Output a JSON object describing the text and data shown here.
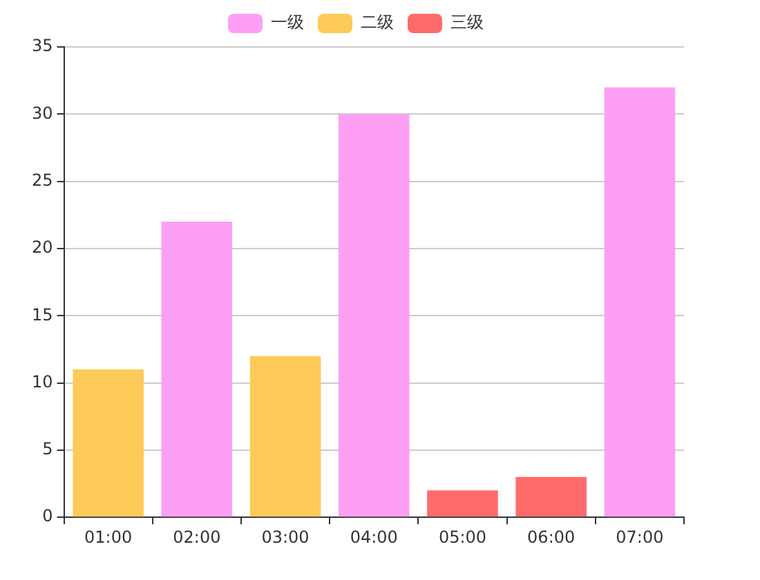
{
  "chart_data": {
    "type": "bar",
    "categories": [
      "01:00",
      "02:00",
      "03:00",
      "04:00",
      "05:00",
      "06:00",
      "07:00"
    ],
    "series": [
      {
        "name": "一级",
        "color": "#fd9ff3",
        "values": [
          null,
          22,
          null,
          30,
          null,
          null,
          32
        ]
      },
      {
        "name": "二级",
        "color": "#fdca58",
        "values": [
          11,
          null,
          12,
          null,
          null,
          null,
          null
        ]
      },
      {
        "name": "三级",
        "color": "#ff6b6b",
        "values": [
          null,
          null,
          null,
          null,
          2,
          3,
          null
        ]
      }
    ],
    "stacked": true,
    "ylim": [
      0,
      35
    ],
    "yticks": [
      0,
      5,
      10,
      15,
      20,
      25,
      30,
      35
    ],
    "grid": "y",
    "legend": "top"
  }
}
